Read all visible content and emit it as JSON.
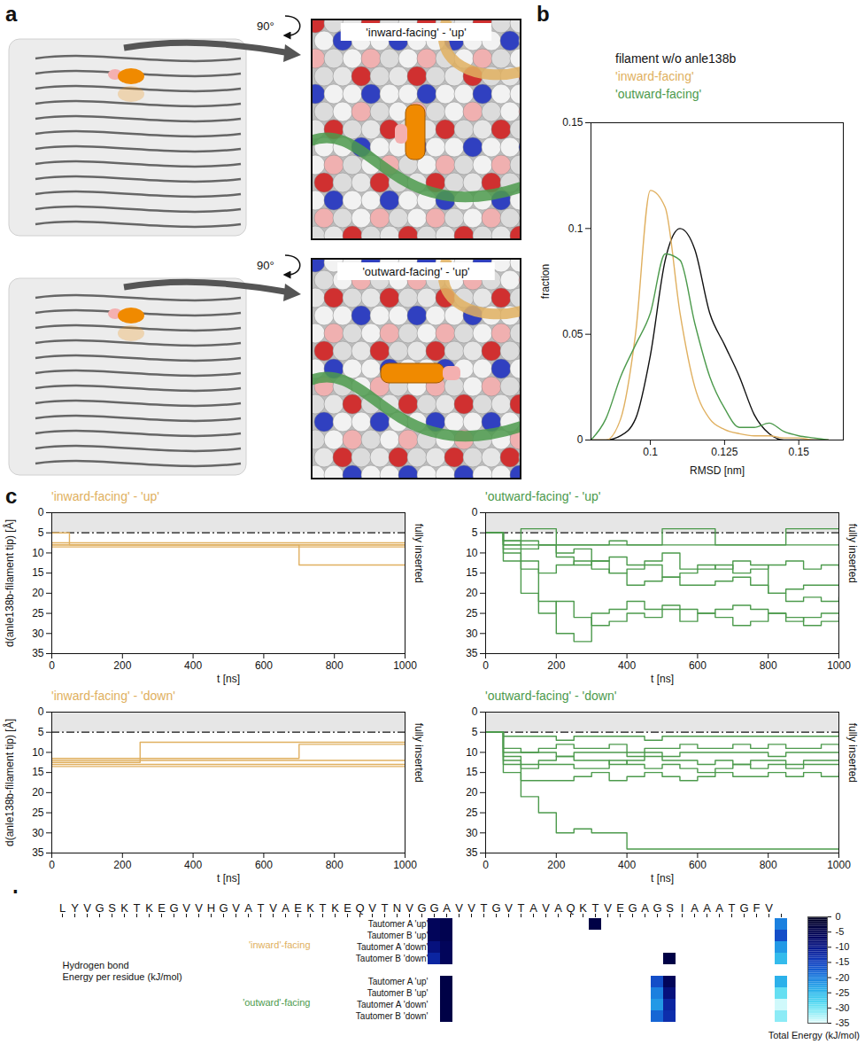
{
  "panel_a": {
    "panel_label": "a",
    "rotation_label": "90°",
    "views": [
      "'inward-facing' - 'up'",
      "'outward-facing' - 'up'"
    ]
  },
  "chart_data": [
    {
      "type": "line",
      "panel_label": "b",
      "xlabel": "RMSD [nm]",
      "ylabel": "fraction",
      "xlim": [
        0.08,
        0.165
      ],
      "xticks": [
        0.1,
        0.125,
        0.15
      ],
      "ylim": [
        0,
        0.15
      ],
      "yticks": [
        0,
        0.05,
        0.1,
        0.15
      ],
      "legend": "top",
      "line_style": "smooth",
      "x": [
        0.08,
        0.085,
        0.09,
        0.095,
        0.1,
        0.105,
        0.11,
        0.115,
        0.12,
        0.125,
        0.13,
        0.135,
        0.14,
        0.145,
        0.15,
        0.155,
        0.16
      ],
      "series": [
        {
          "name": "filament w/o anle138b",
          "color": "#111111",
          "values": [
            0,
            0,
            0.002,
            0.01,
            0.04,
            0.085,
            0.1,
            0.09,
            0.06,
            0.045,
            0.03,
            0.012,
            0.003,
            0,
            0,
            0,
            0
          ]
        },
        {
          "name": "'inward-facing'",
          "color": "#e0b060",
          "values": [
            0,
            0,
            0.01,
            0.05,
            0.118,
            0.11,
            0.06,
            0.025,
            0.01,
            0.005,
            0.003,
            0.002,
            0.002,
            0.001,
            0.001,
            0,
            0
          ]
        },
        {
          "name": "'outward-facing'",
          "color": "#4c9a4c",
          "values": [
            0,
            0.01,
            0.03,
            0.045,
            0.06,
            0.088,
            0.085,
            0.055,
            0.03,
            0.015,
            0.006,
            0.006,
            0.008,
            0.004,
            0.002,
            0.001,
            0
          ]
        }
      ]
    },
    {
      "type": "line",
      "panel_label": "c",
      "title": "'inward-facing' - 'up'",
      "color": "#e0b060",
      "xlabel": "t [ns]",
      "ylabel": "d(anle138b-filament tip) [Å]",
      "line_style": "step",
      "xlim": [
        0,
        1000
      ],
      "xticks": [
        0,
        200,
        400,
        600,
        800,
        1000
      ],
      "ylim": [
        35,
        0
      ],
      "yticks": [
        0,
        5,
        10,
        15,
        20,
        25,
        30,
        35
      ],
      "fully_inserted": {
        "label": "fully inserted",
        "ylim": [
          0,
          5
        ]
      },
      "x": [
        0,
        50,
        100,
        150,
        200,
        250,
        300,
        350,
        400,
        450,
        500,
        550,
        600,
        650,
        700,
        750,
        800,
        850,
        900,
        950,
        1000
      ],
      "series": [
        {
          "values": [
            8,
            8,
            8,
            8,
            8,
            8,
            8,
            8,
            8,
            8,
            8,
            8,
            8,
            8,
            8,
            8,
            8,
            8,
            8,
            8,
            8
          ]
        },
        {
          "values": [
            8.5,
            8.5,
            8.5,
            8.5,
            8.5,
            8.5,
            8.5,
            8.5,
            8.5,
            8.5,
            8.5,
            8.5,
            8.5,
            8.5,
            8.5,
            8.5,
            8.5,
            8.5,
            8.5,
            8.5,
            8.5
          ]
        },
        {
          "values": [
            8,
            8,
            8,
            8,
            8,
            8,
            8,
            8,
            8,
            8,
            8,
            8,
            8,
            8,
            13,
            13,
            13,
            13,
            13,
            13,
            13
          ]
        },
        {
          "values": [
            5,
            8,
            8,
            8,
            8,
            8,
            8,
            8,
            8,
            8,
            8,
            8,
            8,
            8,
            8,
            8,
            8,
            8,
            8,
            8,
            8
          ]
        },
        {
          "values": [
            7.5,
            7.5,
            7.5,
            7.5,
            7.5,
            7.5,
            7.5,
            7.5,
            7.5,
            7.5,
            7.5,
            7.5,
            7.5,
            7.5,
            7.5,
            7.5,
            7.5,
            7.5,
            7.5,
            7.5,
            7.5
          ]
        }
      ]
    },
    {
      "type": "line",
      "title": "'outward-facing' - 'up'",
      "color": "#4c9a4c",
      "xlabel": "t [ns]",
      "line_style": "step",
      "xlim": [
        0,
        1000
      ],
      "xticks": [
        0,
        200,
        400,
        600,
        800,
        1000
      ],
      "ylim": [
        35,
        0
      ],
      "yticks": [
        0,
        5,
        10,
        15,
        20,
        25,
        30,
        35
      ],
      "fully_inserted": {
        "label": "fully inserted",
        "ylim": [
          0,
          5
        ]
      },
      "x": [
        0,
        50,
        100,
        150,
        200,
        250,
        300,
        350,
        400,
        450,
        500,
        550,
        600,
        650,
        700,
        750,
        800,
        850,
        900,
        950,
        1000
      ],
      "series": [
        {
          "values": [
            5,
            8,
            8,
            8,
            8,
            8,
            8,
            8,
            8,
            8,
            8,
            8,
            8,
            8,
            8,
            8,
            8,
            8,
            8,
            8,
            8
          ]
        },
        {
          "values": [
            5,
            10,
            12,
            15,
            13,
            12,
            14,
            15,
            18,
            17,
            16,
            18,
            18,
            17,
            16,
            18,
            20,
            19,
            18,
            18,
            18
          ]
        },
        {
          "values": [
            5,
            12,
            20,
            25,
            22,
            26,
            28,
            27,
            25,
            26,
            24,
            27,
            25,
            26,
            28,
            27,
            25,
            26,
            28,
            27,
            26
          ]
        },
        {
          "values": [
            5,
            7,
            9,
            8,
            11,
            13,
            12,
            15,
            14,
            13,
            16,
            15,
            14,
            13,
            15,
            14,
            13,
            12,
            14,
            13,
            14
          ]
        },
        {
          "values": [
            5,
            9,
            14,
            22,
            30,
            32,
            25,
            24,
            22,
            24,
            23,
            24,
            25,
            24,
            23,
            24,
            25,
            27,
            26,
            25,
            25
          ]
        },
        {
          "values": [
            5,
            7,
            7,
            8,
            10,
            9,
            12,
            11,
            13,
            12,
            10,
            14,
            13,
            14,
            12,
            13,
            20,
            22,
            21,
            22,
            21
          ]
        },
        {
          "values": [
            5,
            8,
            4,
            4,
            8,
            8,
            8,
            7,
            8,
            8,
            4,
            4,
            4,
            8,
            8,
            8,
            8,
            4,
            4,
            4,
            4
          ]
        }
      ]
    },
    {
      "type": "line",
      "title": "'inward-facing' - 'down'",
      "color": "#e0b060",
      "xlabel": "t [ns]",
      "ylabel": "d(anle138b-filament tip) [Å]",
      "line_style": "step",
      "xlim": [
        0,
        1000
      ],
      "xticks": [
        0,
        200,
        400,
        600,
        800,
        1000
      ],
      "ylim": [
        35,
        0
      ],
      "yticks": [
        0,
        5,
        10,
        15,
        20,
        25,
        30,
        35
      ],
      "fully_inserted": {
        "label": "fully inserted",
        "ylim": [
          0,
          5
        ]
      },
      "x": [
        0,
        50,
        100,
        150,
        200,
        250,
        300,
        350,
        400,
        450,
        500,
        550,
        600,
        650,
        700,
        750,
        800,
        850,
        900,
        950,
        1000
      ],
      "series": [
        {
          "values": [
            12,
            12,
            12,
            12,
            12,
            12,
            12,
            12,
            12,
            12,
            12,
            12,
            12,
            12,
            12,
            12,
            12,
            12,
            12,
            12,
            12
          ]
        },
        {
          "values": [
            13,
            13,
            13,
            13,
            13,
            13,
            13,
            13,
            13,
            13,
            13,
            13,
            13,
            13,
            13,
            13,
            13,
            13,
            13,
            13,
            13
          ]
        },
        {
          "values": [
            12.5,
            12.5,
            12.5,
            12.5,
            12.5,
            7.5,
            7.5,
            7.5,
            7.5,
            7.5,
            7.5,
            7.5,
            7.5,
            7.5,
            7.5,
            7.5,
            7.5,
            7.5,
            7.5,
            7.5,
            7.5
          ]
        },
        {
          "values": [
            11.5,
            11.5,
            11.5,
            11.5,
            11.5,
            11.5,
            11.5,
            11.5,
            11.5,
            11.5,
            11.5,
            11.5,
            11.5,
            11.5,
            8,
            8,
            8,
            8,
            8,
            8,
            8
          ]
        },
        {
          "values": [
            13.5,
            13.5,
            13.5,
            13.5,
            13.5,
            13.5,
            13.5,
            13.5,
            13.5,
            13.5,
            13.5,
            13.5,
            13.5,
            13.5,
            13.5,
            13.5,
            13.5,
            13.5,
            13.5,
            13.5,
            13.5
          ]
        }
      ]
    },
    {
      "type": "line",
      "title": "'outward-facing' - 'down'",
      "color": "#4c9a4c",
      "xlabel": "t [ns]",
      "line_style": "step",
      "xlim": [
        0,
        1000
      ],
      "xticks": [
        0,
        200,
        400,
        600,
        800,
        1000
      ],
      "ylim": [
        35,
        0
      ],
      "yticks": [
        0,
        5,
        10,
        15,
        20,
        25,
        30,
        35
      ],
      "fully_inserted": {
        "label": "fully inserted",
        "ylim": [
          0,
          5
        ]
      },
      "x": [
        0,
        50,
        100,
        150,
        200,
        250,
        300,
        350,
        400,
        450,
        500,
        550,
        600,
        650,
        700,
        750,
        800,
        850,
        900,
        950,
        1000
      ],
      "series": [
        {
          "values": [
            5,
            10,
            10,
            10,
            11,
            10,
            10,
            10,
            11,
            10,
            11,
            10,
            10,
            10,
            10,
            10,
            11,
            10,
            10,
            10,
            10
          ]
        },
        {
          "values": [
            5,
            12,
            13,
            12,
            11,
            12,
            12,
            13,
            12,
            11,
            12,
            12,
            13,
            12,
            13,
            12,
            12,
            13,
            12,
            12,
            12
          ]
        },
        {
          "values": [
            5,
            9,
            10,
            9,
            8,
            9,
            9,
            8,
            10,
            9,
            9,
            8,
            9,
            9,
            8,
            9,
            8,
            9,
            9,
            8,
            9
          ]
        },
        {
          "values": [
            5,
            15,
            21,
            25,
            30,
            29,
            30,
            30,
            34,
            34,
            34,
            34,
            34,
            34,
            34,
            34,
            34,
            34,
            34,
            34,
            34
          ]
        },
        {
          "values": [
            5,
            11,
            17,
            17,
            17,
            16,
            15,
            17,
            16,
            15,
            16,
            17,
            16,
            15,
            16,
            16,
            15,
            16,
            15,
            16,
            15
          ]
        },
        {
          "values": [
            5,
            6,
            6,
            6,
            7,
            6,
            6,
            6,
            6,
            7,
            6,
            6,
            6,
            6,
            6,
            6,
            6,
            6,
            6,
            6,
            5
          ]
        },
        {
          "values": [
            5,
            13,
            14,
            13,
            13,
            14,
            14,
            12,
            13,
            14,
            13,
            14,
            15,
            14,
            13,
            14,
            13,
            14,
            13,
            13,
            13
          ]
        }
      ]
    },
    {
      "type": "heatmap",
      "panel_label": "d",
      "categories": [
        "L",
        "Y",
        "V",
        "G",
        "S",
        "K",
        "T",
        "K",
        "E",
        "G",
        "V",
        "V",
        "H",
        "G",
        "V",
        "A",
        "T",
        "V",
        "A",
        "E",
        "K",
        "T",
        "K",
        "E",
        "Q",
        "V",
        "T",
        "N",
        "V",
        "G",
        "G",
        "A",
        "V",
        "V",
        "T",
        "G",
        "V",
        "T",
        "A",
        "V",
        "A",
        "Q",
        "K",
        "T",
        "V",
        "E",
        "G",
        "A",
        "G",
        "S",
        "I",
        "A",
        "A",
        "A",
        "T",
        "G",
        "F",
        "V"
      ],
      "row_title": [
        "Hydrogen bond",
        "Energy per residue (kJ/mol)"
      ],
      "rows": [
        "Tautomer A 'up'",
        "Tautomer B 'up'",
        "Tautomer A 'down'",
        "Tautomer B 'down'",
        "Tautomer A 'up'",
        "Tautomer B 'up'",
        "Tautomer A 'down'",
        "Tautomer B 'down'"
      ],
      "groups": [
        {
          "label": "'inward'-facing",
          "color": "#e0b060",
          "rows": [
            0,
            1,
            2,
            3
          ]
        },
        {
          "label": "'outward'-facing",
          "color": "#4c9a4c",
          "rows": [
            4,
            5,
            6,
            7
          ]
        }
      ],
      "cells": [
        {
          "row": 0,
          "position": 30,
          "value": -6
        },
        {
          "row": 0,
          "position": 31,
          "value": -5
        },
        {
          "row": 0,
          "position": 43,
          "value": -4
        },
        {
          "row": 1,
          "position": 30,
          "value": -6
        },
        {
          "row": 1,
          "position": 31,
          "value": -5
        },
        {
          "row": 2,
          "position": 30,
          "value": -9
        },
        {
          "row": 2,
          "position": 31,
          "value": -6
        },
        {
          "row": 3,
          "position": 30,
          "value": -12
        },
        {
          "row": 3,
          "position": 31,
          "value": -6
        },
        {
          "row": 3,
          "position": 49,
          "value": -4
        },
        {
          "row": 4,
          "position": 31,
          "value": -4
        },
        {
          "row": 4,
          "position": 48,
          "value": -16
        },
        {
          "row": 4,
          "position": 49,
          "value": -6
        },
        {
          "row": 5,
          "position": 31,
          "value": -4
        },
        {
          "row": 5,
          "position": 48,
          "value": -20
        },
        {
          "row": 5,
          "position": 49,
          "value": -9
        },
        {
          "row": 6,
          "position": 31,
          "value": -4
        },
        {
          "row": 6,
          "position": 48,
          "value": -22
        },
        {
          "row": 6,
          "position": 49,
          "value": -12
        },
        {
          "row": 7,
          "position": 31,
          "value": -4
        },
        {
          "row": 7,
          "position": 48,
          "value": -18
        },
        {
          "row": 7,
          "position": 49,
          "value": -13
        }
      ],
      "totals": [
        -20,
        -16,
        -22,
        -25,
        -24,
        -29,
        -34,
        -31
      ],
      "colorbar": {
        "range": [
          0,
          -35
        ],
        "ticks": [
          0,
          -5,
          -10,
          -15,
          -20,
          -25,
          -30,
          -35
        ],
        "label": "Total Energy (kJ/mol)"
      }
    }
  ]
}
